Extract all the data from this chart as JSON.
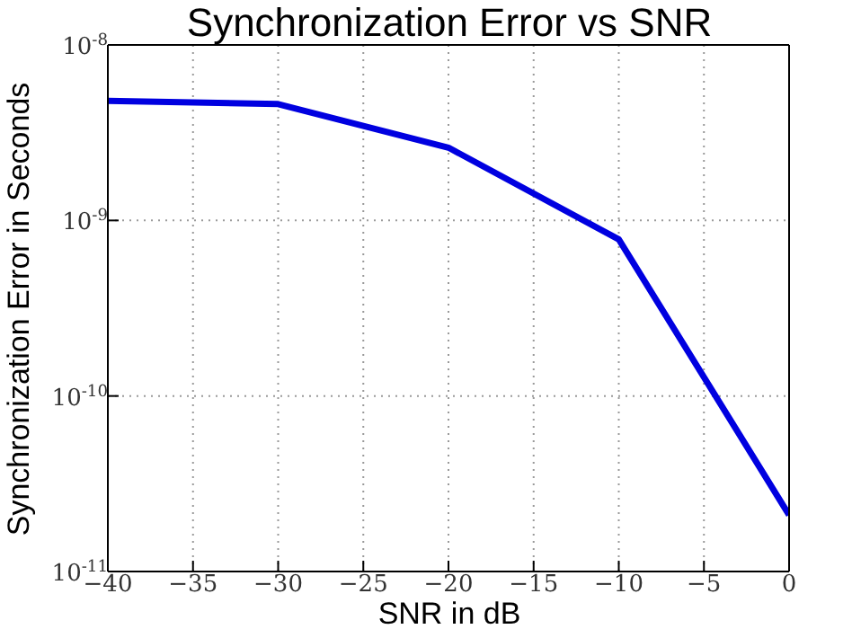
{
  "chart_data": {
    "type": "line",
    "title": "Synchronization Error vs SNR",
    "xlabel": "SNR in dB",
    "ylabel": "Synchronization Error in Seconds",
    "x": [
      -40,
      -30,
      -20,
      -10,
      0
    ],
    "series": [
      {
        "color": "#0000e0",
        "values": [
          4.8e-09,
          4.6e-09,
          2.6e-09,
          7.8e-10,
          2.1e-11
        ]
      }
    ],
    "xlim": [
      -40,
      0
    ],
    "xticks": [
      -40,
      -35,
      -30,
      -25,
      -20,
      -15,
      -10,
      -5,
      0
    ],
    "ylim": [
      1e-11,
      1e-08
    ],
    "yticks": [
      {
        "value": 1e-11,
        "label": "10$^{-11}$"
      },
      {
        "value": 1e-10,
        "label": "10$^{-10}$"
      },
      {
        "value": 1e-09,
        "label": "10$^{-9}$"
      },
      {
        "value": 1e-08,
        "label": "10$^{-8}$"
      }
    ],
    "log": "y",
    "grid": true,
    "marker": "none",
    "line_style": "solid"
  }
}
